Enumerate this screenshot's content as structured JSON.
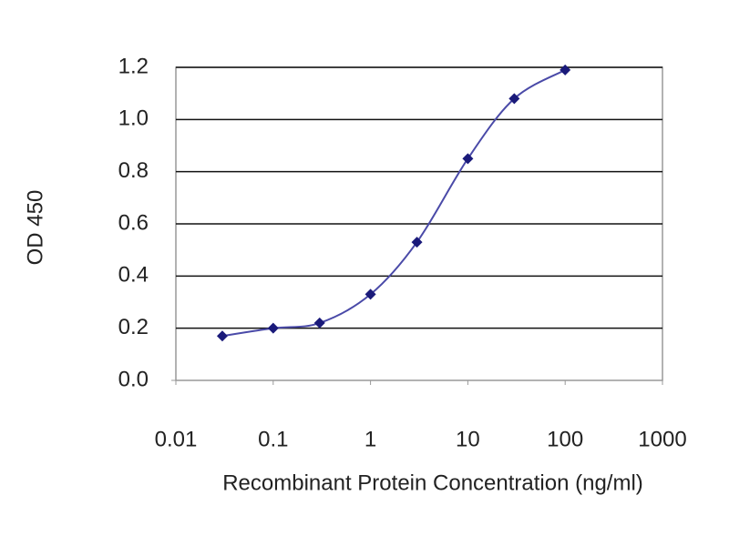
{
  "chart_data": {
    "type": "line",
    "x_label": "Recombinant Protein Concentration (ng/ml)",
    "y_label": "OD 450",
    "x_log": true,
    "grid": true,
    "x": [
      0.03,
      0.1,
      0.3,
      1,
      3,
      10,
      30,
      100
    ],
    "series": [
      {
        "name": "OD",
        "color": "#1a1a7a",
        "values": [
          0.17,
          0.2,
          0.22,
          0.33,
          0.53,
          0.85,
          1.08,
          1.19
        ]
      }
    ],
    "xlim": [
      0.01,
      1000
    ],
    "xticks": [
      0.01,
      0.1,
      1,
      10,
      100,
      1000
    ],
    "ylim": [
      0,
      1.2
    ],
    "yticks": [
      {
        "value": 0,
        "label": "0.0"
      },
      0.2,
      0.4,
      0.6,
      0.8,
      {
        "value": 1,
        "label": "1.0"
      },
      1.2
    ]
  }
}
